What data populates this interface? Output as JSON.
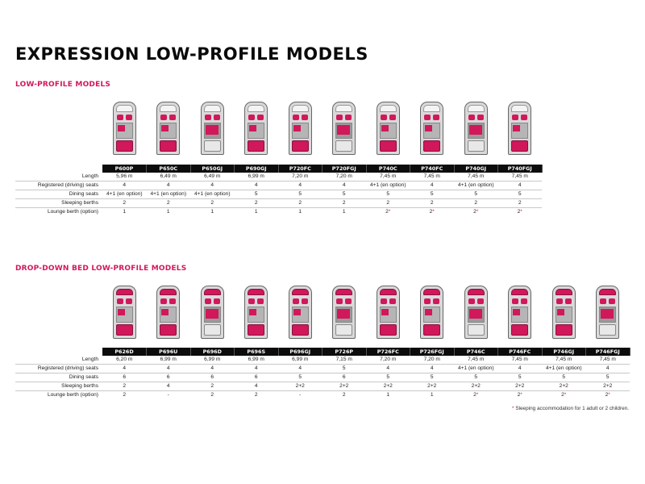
{
  "page": {
    "title": "EXPRESSION LOW-PROFILE MODELS",
    "footnote": "* Sleeping accommodation for 1 adult or 2 children."
  },
  "row_labels": [
    "Length",
    "Registered (driving) seats",
    "Dining seats",
    "Sleeping berths",
    "Lounge berth (option)"
  ],
  "section1": {
    "title": "LOW-PROFILE MODELS",
    "models": [
      "P600P",
      "P650C",
      "P650GJ",
      "P690GJ",
      "P720FC",
      "P720FGJ",
      "P740C",
      "P740FC",
      "P740GJ",
      "P740FGJ"
    ],
    "rows": [
      [
        "5,96 m",
        "6,49 m",
        "6,49 m",
        "6,99 m",
        "7,20 m",
        "7,20 m",
        "7,45 m",
        "7,45 m",
        "7,45 m",
        "7,45 m"
      ],
      [
        "4",
        "4",
        "4",
        "4",
        "4",
        "4",
        "4+1 (en option)",
        "4",
        "4+1 (en option)",
        "4"
      ],
      [
        "4+1 (en option)",
        "4+1 (en option)",
        "4+1 (en option)",
        "5",
        "5",
        "5",
        "5",
        "5",
        "5",
        "5"
      ],
      [
        "2",
        "2",
        "2",
        "2",
        "2",
        "2",
        "2",
        "2",
        "2",
        "2"
      ],
      [
        "1",
        "1",
        "1",
        "1",
        "1",
        "1",
        "2*",
        "2*",
        "2*",
        "2*"
      ]
    ]
  },
  "section2": {
    "title": "DROP-DOWN BED LOW-PROFILE MODELS",
    "models": [
      "P626D",
      "P696U",
      "P696D",
      "P696S",
      "P696GJ",
      "P726P",
      "P726FC",
      "P726FGJ",
      "P746C",
      "P746FC",
      "P746GJ",
      "P746FGJ"
    ],
    "rows": [
      [
        "6,20 m",
        "6,99 m",
        "6,99 m",
        "6,99 m",
        "6,99 m",
        "7,15 m",
        "7,20 m",
        "7,20 m",
        "7,45 m",
        "7,45 m",
        "7,45 m",
        "7,45 m"
      ],
      [
        "4",
        "4",
        "4",
        "4",
        "4",
        "5",
        "4",
        "4",
        "4+1 (en option)",
        "4",
        "4+1 (en option)",
        "4"
      ],
      [
        "6",
        "6",
        "6",
        "6",
        "5",
        "6",
        "5",
        "5",
        "5",
        "5",
        "5",
        "5"
      ],
      [
        "2",
        "4",
        "2",
        "4",
        "2+2",
        "2+2",
        "2+2",
        "2+2",
        "2+2",
        "2+2",
        "2+2",
        "2+2"
      ],
      [
        "2",
        "-",
        "2",
        "2",
        "-",
        "2",
        "1",
        "1",
        "2*",
        "2*",
        "2*",
        "2*"
      ]
    ]
  },
  "colors": {
    "accent": "#d1185b",
    "header_bg": "#0c0c0c"
  }
}
